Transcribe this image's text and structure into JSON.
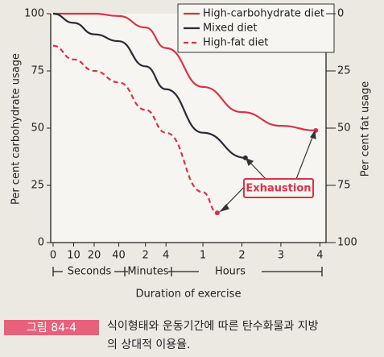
{
  "chart_data": {
    "type": "line",
    "y_label": "Per cent carbohydrate usage",
    "y2_label": "Per cent fat usage",
    "x_label": "Duration of exercise",
    "x_groups": [
      "Seconds",
      "Minutes",
      "Hours"
    ],
    "annotation": "Exhaustion",
    "xlim": [
      0,
      13.3
    ],
    "xticks": [
      {
        "value": 0,
        "label": "0"
      },
      {
        "value": 1,
        "label": "10"
      },
      {
        "value": 2,
        "label": "20"
      },
      {
        "value": 3.2,
        "label": "40"
      },
      {
        "value": 4.5,
        "label": "2"
      },
      {
        "value": 5.5,
        "label": "4"
      },
      {
        "value": 7.3,
        "label": "1"
      },
      {
        "value": 9.2,
        "label": "2"
      },
      {
        "value": 11.1,
        "label": "3"
      },
      {
        "value": 13,
        "label": "4"
      }
    ],
    "ylim": [
      0,
      100
    ],
    "yticks": [
      0,
      25,
      50,
      75,
      100
    ],
    "y2lim": [
      100,
      0
    ],
    "y2ticks": [
      0,
      25,
      50,
      75,
      100
    ],
    "series": [
      {
        "name": "High-carbohydrate diet",
        "color": "#d8344a",
        "dashed": false,
        "x": [
          0,
          1,
          2,
          3.2,
          4.5,
          5.5,
          7.3,
          9.2,
          11.1,
          12.8
        ],
        "values": [
          100,
          100,
          100,
          99,
          94,
          85,
          68,
          57,
          51,
          49
        ]
      },
      {
        "name": "Mixed diet",
        "color": "#2a2a35",
        "dashed": false,
        "x": [
          0,
          1,
          2,
          3.2,
          4.5,
          5.5,
          7.3,
          9.37
        ],
        "values": [
          100,
          96,
          91,
          88,
          77,
          67,
          48,
          37
        ]
      },
      {
        "name": "High-fat diet",
        "color": "#d8344a",
        "dashed": true,
        "x": [
          0,
          1,
          2,
          3.2,
          4.5,
          5.5,
          7.3,
          8.0
        ],
        "values": [
          86,
          80,
          75,
          70,
          58,
          48,
          22,
          13
        ]
      }
    ],
    "caption": {
      "figure": "그림 84-4",
      "lines": [
        "식이형태와 운동기간에 따른 탄수화물과 지방",
        "의 상대적 이용율."
      ]
    }
  }
}
